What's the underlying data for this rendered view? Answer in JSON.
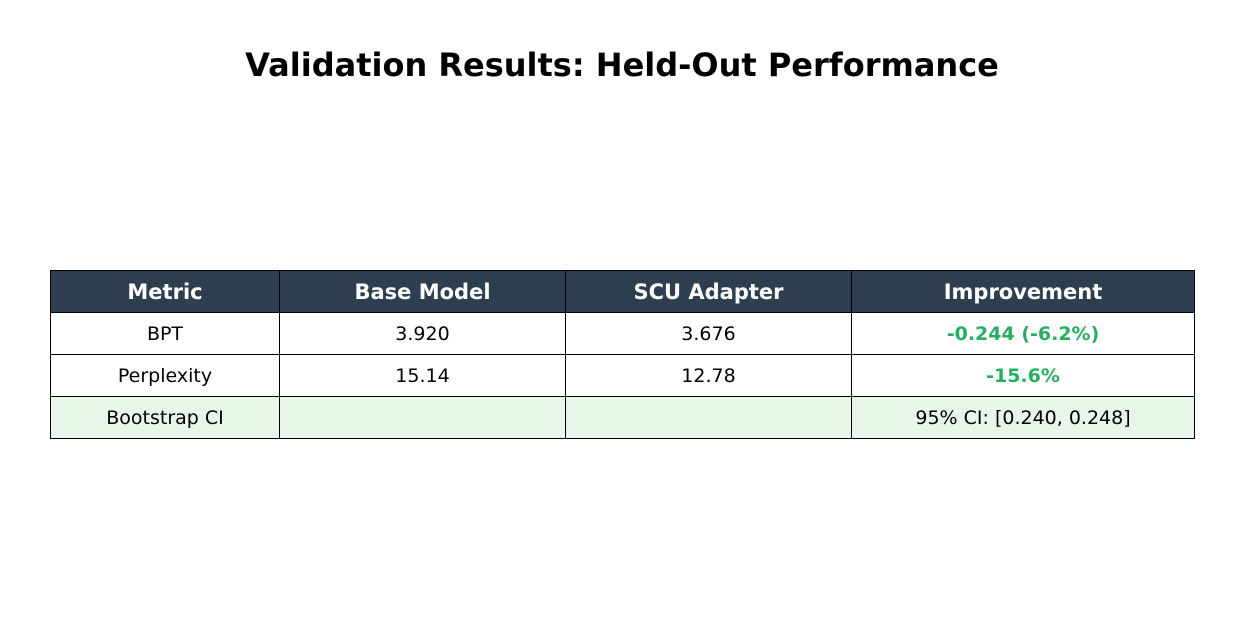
{
  "chart_data": {
    "type": "table",
    "title": "Validation Results: Held-Out Performance",
    "columns": [
      "Metric",
      "Base Model",
      "SCU Adapter",
      "Improvement"
    ],
    "rows": [
      {
        "metric": "BPT",
        "base_model": "3.920",
        "scu_adapter": "3.676",
        "improvement": "-0.244 (-6.2%)",
        "highlight": true
      },
      {
        "metric": "Perplexity",
        "base_model": "15.14",
        "scu_adapter": "12.78",
        "improvement": "-15.6%",
        "highlight": true
      },
      {
        "metric": "Bootstrap CI",
        "base_model": "",
        "scu_adapter": "",
        "improvement": "95% CI: [0.240, 0.248]",
        "highlight": false,
        "shaded": true
      }
    ]
  },
  "colors": {
    "header_bg": "#2c3e50",
    "header_text": "#ffffff",
    "improvement_text": "#27ae60",
    "shaded_row_bg": "#e8f5e9",
    "row_bg": "#ffffff"
  }
}
